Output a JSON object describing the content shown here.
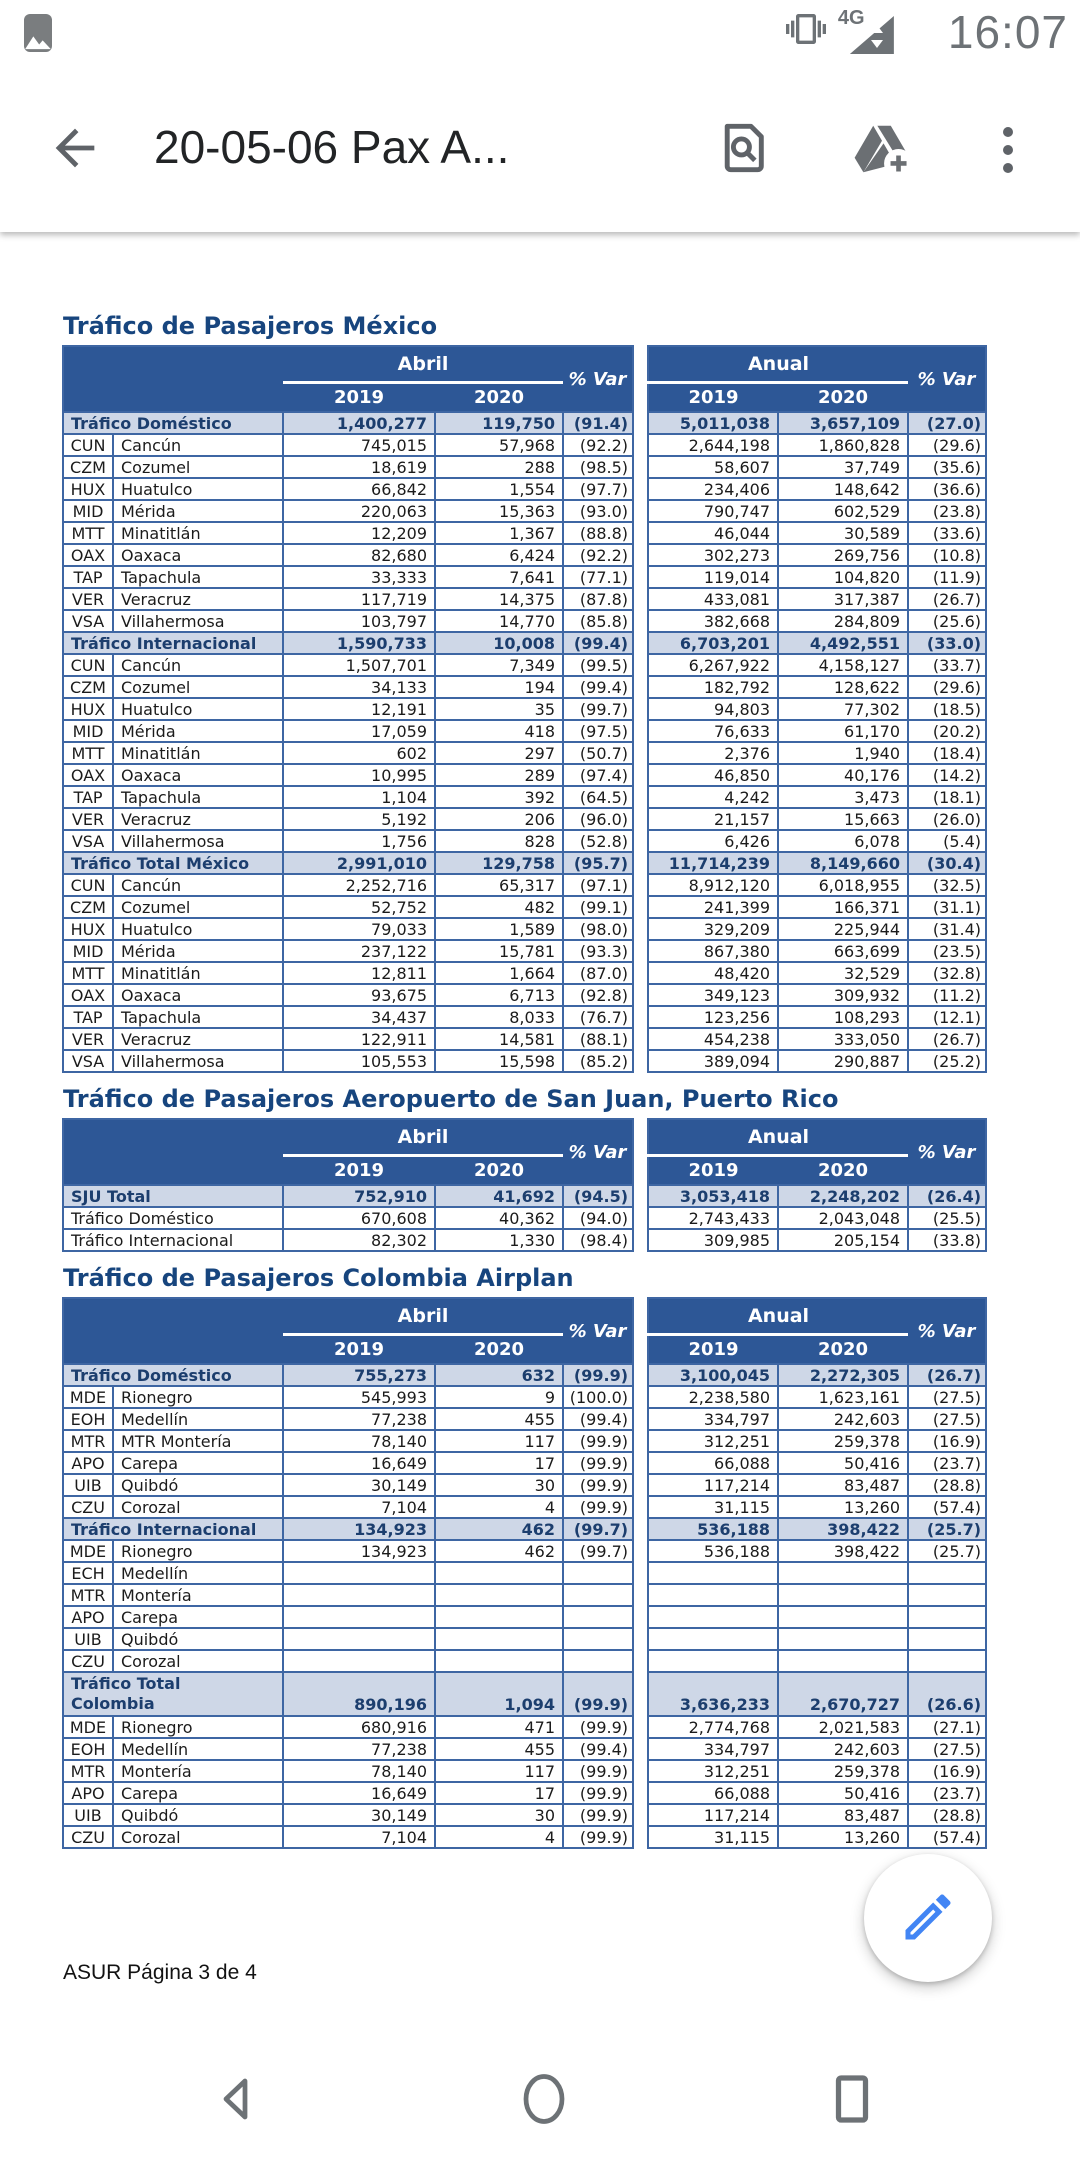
{
  "status_bar": {
    "time": "16:07",
    "network": "4G"
  },
  "app_bar": {
    "title": "20-05-06 Pax A...",
    "icons": [
      "back-arrow",
      "search-in-document",
      "add-to-drive",
      "overflow-menu"
    ]
  },
  "fab": {
    "icon": "edit-pencil",
    "color": "#4285F4"
  },
  "nav_bar": {
    "icons": [
      "back",
      "home",
      "recents"
    ]
  },
  "colors": {
    "table_header_bg": "#2D5796",
    "table_border": "#3E66A3",
    "section_row_bg": "#CED7E7",
    "section_text": "#1C3E6E",
    "title_text": "#17457E",
    "accent_blue": "#4285F4",
    "status_icon_gray": "#6d7276"
  },
  "doc": {
    "headers": {
      "april": "Abril",
      "annual": "Anual",
      "y2019": "2019",
      "y2020": "2020",
      "var": "% Var"
    },
    "footer": "ASUR Página 3 de 4",
    "tables": [
      {
        "title": "Tráfico de Pasajeros México",
        "rows": [
          {
            "type": "section",
            "name": "Tráfico Doméstico",
            "a1": "1,400,277",
            "a2": "119,750",
            "av": "(91.4)",
            "n1": "5,011,038",
            "n2": "3,657,109",
            "nv": "(27.0)"
          },
          {
            "type": "data",
            "code": "CUN",
            "name": "Cancún",
            "a1": "745,015",
            "a2": "57,968",
            "av": "(92.2)",
            "n1": "2,644,198",
            "n2": "1,860,828",
            "nv": "(29.6)"
          },
          {
            "type": "data",
            "code": "CZM",
            "name": "Cozumel",
            "a1": "18,619",
            "a2": "288",
            "av": "(98.5)",
            "n1": "58,607",
            "n2": "37,749",
            "nv": "(35.6)"
          },
          {
            "type": "data",
            "code": "HUX",
            "name": "Huatulco",
            "a1": "66,842",
            "a2": "1,554",
            "av": "(97.7)",
            "n1": "234,406",
            "n2": "148,642",
            "nv": "(36.6)"
          },
          {
            "type": "data",
            "code": "MID",
            "name": "Mérida",
            "a1": "220,063",
            "a2": "15,363",
            "av": "(93.0)",
            "n1": "790,747",
            "n2": "602,529",
            "nv": "(23.8)"
          },
          {
            "type": "data",
            "code": "MTT",
            "name": "Minatitlán",
            "a1": "12,209",
            "a2": "1,367",
            "av": "(88.8)",
            "n1": "46,044",
            "n2": "30,589",
            "nv": "(33.6)"
          },
          {
            "type": "data",
            "code": "OAX",
            "name": "Oaxaca",
            "a1": "82,680",
            "a2": "6,424",
            "av": "(92.2)",
            "n1": "302,273",
            "n2": "269,756",
            "nv": "(10.8)"
          },
          {
            "type": "data",
            "code": "TAP",
            "name": "Tapachula",
            "a1": "33,333",
            "a2": "7,641",
            "av": "(77.1)",
            "n1": "119,014",
            "n2": "104,820",
            "nv": "(11.9)"
          },
          {
            "type": "data",
            "code": "VER",
            "name": "Veracruz",
            "a1": "117,719",
            "a2": "14,375",
            "av": "(87.8)",
            "n1": "433,081",
            "n2": "317,387",
            "nv": "(26.7)"
          },
          {
            "type": "data",
            "code": "VSA",
            "name": "Villahermosa",
            "a1": "103,797",
            "a2": "14,770",
            "av": "(85.8)",
            "n1": "382,668",
            "n2": "284,809",
            "nv": "(25.6)"
          },
          {
            "type": "section",
            "name": "Tráfico Internacional",
            "a1": "1,590,733",
            "a2": "10,008",
            "av": "(99.4)",
            "n1": "6,703,201",
            "n2": "4,492,551",
            "nv": "(33.0)"
          },
          {
            "type": "data",
            "code": "CUN",
            "name": "Cancún",
            "a1": "1,507,701",
            "a2": "7,349",
            "av": "(99.5)",
            "n1": "6,267,922",
            "n2": "4,158,127",
            "nv": "(33.7)"
          },
          {
            "type": "data",
            "code": "CZM",
            "name": "Cozumel",
            "a1": "34,133",
            "a2": "194",
            "av": "(99.4)",
            "n1": "182,792",
            "n2": "128,622",
            "nv": "(29.6)"
          },
          {
            "type": "data",
            "code": "HUX",
            "name": "Huatulco",
            "a1": "12,191",
            "a2": "35",
            "av": "(99.7)",
            "n1": "94,803",
            "n2": "77,302",
            "nv": "(18.5)"
          },
          {
            "type": "data",
            "code": "MID",
            "name": "Mérida",
            "a1": "17,059",
            "a2": "418",
            "av": "(97.5)",
            "n1": "76,633",
            "n2": "61,170",
            "nv": "(20.2)"
          },
          {
            "type": "data",
            "code": "MTT",
            "name": "Minatitlán",
            "a1": "602",
            "a2": "297",
            "av": "(50.7)",
            "n1": "2,376",
            "n2": "1,940",
            "nv": "(18.4)"
          },
          {
            "type": "data",
            "code": "OAX",
            "name": "Oaxaca",
            "a1": "10,995",
            "a2": "289",
            "av": "(97.4)",
            "n1": "46,850",
            "n2": "40,176",
            "nv": "(14.2)"
          },
          {
            "type": "data",
            "code": "TAP",
            "name": "Tapachula",
            "a1": "1,104",
            "a2": "392",
            "av": "(64.5)",
            "n1": "4,242",
            "n2": "3,473",
            "nv": "(18.1)"
          },
          {
            "type": "data",
            "code": "VER",
            "name": "Veracruz",
            "a1": "5,192",
            "a2": "206",
            "av": "(96.0)",
            "n1": "21,157",
            "n2": "15,663",
            "nv": "(26.0)"
          },
          {
            "type": "data",
            "code": "VSA",
            "name": "Villahermosa",
            "a1": "1,756",
            "a2": "828",
            "av": "(52.8)",
            "n1": "6,426",
            "n2": "6,078",
            "nv": "(5.4)"
          },
          {
            "type": "section",
            "name": "Tráfico Total México",
            "a1": "2,991,010",
            "a2": "129,758",
            "av": "(95.7)",
            "n1": "11,714,239",
            "n2": "8,149,660",
            "nv": "(30.4)"
          },
          {
            "type": "data",
            "code": "CUN",
            "name": "Cancún",
            "a1": "2,252,716",
            "a2": "65,317",
            "av": "(97.1)",
            "n1": "8,912,120",
            "n2": "6,018,955",
            "nv": "(32.5)"
          },
          {
            "type": "data",
            "code": "CZM",
            "name": "Cozumel",
            "a1": "52,752",
            "a2": "482",
            "av": "(99.1)",
            "n1": "241,399",
            "n2": "166,371",
            "nv": "(31.1)"
          },
          {
            "type": "data",
            "code": "HUX",
            "name": "Huatulco",
            "a1": "79,033",
            "a2": "1,589",
            "av": "(98.0)",
            "n1": "329,209",
            "n2": "225,944",
            "nv": "(31.4)"
          },
          {
            "type": "data",
            "code": "MID",
            "name": "Mérida",
            "a1": "237,122",
            "a2": "15,781",
            "av": "(93.3)",
            "n1": "867,380",
            "n2": "663,699",
            "nv": "(23.5)"
          },
          {
            "type": "data",
            "code": "MTT",
            "name": "Minatitlán",
            "a1": "12,811",
            "a2": "1,664",
            "av": "(87.0)",
            "n1": "48,420",
            "n2": "32,529",
            "nv": "(32.8)"
          },
          {
            "type": "data",
            "code": "OAX",
            "name": "Oaxaca",
            "a1": "93,675",
            "a2": "6,713",
            "av": "(92.8)",
            "n1": "349,123",
            "n2": "309,932",
            "nv": "(11.2)"
          },
          {
            "type": "data",
            "code": "TAP",
            "name": "Tapachula",
            "a1": "34,437",
            "a2": "8,033",
            "av": "(76.7)",
            "n1": "123,256",
            "n2": "108,293",
            "nv": "(12.1)"
          },
          {
            "type": "data",
            "code": "VER",
            "name": "Veracruz",
            "a1": "122,911",
            "a2": "14,581",
            "av": "(88.1)",
            "n1": "454,238",
            "n2": "333,050",
            "nv": "(26.7)"
          },
          {
            "type": "data",
            "code": "VSA",
            "name": "Villahermosa",
            "a1": "105,553",
            "a2": "15,598",
            "av": "(85.2)",
            "n1": "389,094",
            "n2": "290,887",
            "nv": "(25.2)"
          }
        ]
      },
      {
        "title": "Tráfico de Pasajeros Aeropuerto de San Juan, Puerto Rico",
        "rows": [
          {
            "type": "section",
            "name": "SJU Total",
            "a1": "752,910",
            "a2": "41,692",
            "av": "(94.5)",
            "n1": "3,053,418",
            "n2": "2,248,202",
            "nv": "(26.4)"
          },
          {
            "type": "plain",
            "name": "Tráfico Doméstico",
            "a1": "670,608",
            "a2": "40,362",
            "av": "(94.0)",
            "n1": "2,743,433",
            "n2": "2,043,048",
            "nv": "(25.5)"
          },
          {
            "type": "plain",
            "name": "Tráfico Internacional",
            "a1": "82,302",
            "a2": "1,330",
            "av": "(98.4)",
            "n1": "309,985",
            "n2": "205,154",
            "nv": "(33.8)"
          }
        ]
      },
      {
        "title": "Tráfico de Pasajeros Colombia Airplan",
        "rows": [
          {
            "type": "section",
            "name": "Tráfico Doméstico",
            "a1": "755,273",
            "a2": "632",
            "av": "(99.9)",
            "n1": "3,100,045",
            "n2": "2,272,305",
            "nv": "(26.7)"
          },
          {
            "type": "data",
            "code": "MDE",
            "name": "Rionegro",
            "a1": "545,993",
            "a2": "9",
            "av": "(100.0)",
            "n1": "2,238,580",
            "n2": "1,623,161",
            "nv": "(27.5)"
          },
          {
            "type": "data",
            "code": "EOH",
            "name": "Medellín",
            "a1": "77,238",
            "a2": "455",
            "av": "(99.4)",
            "n1": "334,797",
            "n2": "242,603",
            "nv": "(27.5)"
          },
          {
            "type": "data",
            "code": "MTR",
            "name": "MTR Montería",
            "a1": "78,140",
            "a2": "117",
            "av": "(99.9)",
            "n1": "312,251",
            "n2": "259,378",
            "nv": "(16.9)"
          },
          {
            "type": "data",
            "code": "APO",
            "name": "Carepa",
            "a1": "16,649",
            "a2": "17",
            "av": "(99.9)",
            "n1": "66,088",
            "n2": "50,416",
            "nv": "(23.7)"
          },
          {
            "type": "data",
            "code": "UIB",
            "name": "Quibdó",
            "a1": "30,149",
            "a2": "30",
            "av": "(99.9)",
            "n1": "117,214",
            "n2": "83,487",
            "nv": "(28.8)"
          },
          {
            "type": "data",
            "code": "CZU",
            "name": "Corozal",
            "a1": "7,104",
            "a2": "4",
            "av": "(99.9)",
            "n1": "31,115",
            "n2": "13,260",
            "nv": "(57.4)"
          },
          {
            "type": "section",
            "name": "Tráfico Internacional",
            "a1": "134,923",
            "a2": "462",
            "av": "(99.7)",
            "n1": "536,188",
            "n2": "398,422",
            "nv": "(25.7)"
          },
          {
            "type": "data",
            "code": "MDE",
            "name": "Rionegro",
            "a1": "134,923",
            "a2": "462",
            "av": "(99.7)",
            "n1": "536,188",
            "n2": "398,422",
            "nv": "(25.7)"
          },
          {
            "type": "data",
            "code": "ECH",
            "name": "Medellín",
            "a1": "",
            "a2": "",
            "av": "",
            "n1": "",
            "n2": "",
            "nv": ""
          },
          {
            "type": "data",
            "code": "MTR",
            "name": "Montería",
            "a1": "",
            "a2": "",
            "av": "",
            "n1": "",
            "n2": "",
            "nv": ""
          },
          {
            "type": "data",
            "code": "APO",
            "name": "Carepa",
            "a1": "",
            "a2": "",
            "av": "",
            "n1": "",
            "n2": "",
            "nv": ""
          },
          {
            "type": "data",
            "code": "UIB",
            "name": "Quibdó",
            "a1": "",
            "a2": "",
            "av": "",
            "n1": "",
            "n2": "",
            "nv": ""
          },
          {
            "type": "data",
            "code": "CZU",
            "name": "Corozal",
            "a1": "",
            "a2": "",
            "av": "",
            "n1": "",
            "n2": "",
            "nv": ""
          },
          {
            "type": "tall",
            "name": "Tráfico Total Colombia",
            "a1": "890,196",
            "a2": "1,094",
            "av": "(99.9)",
            "n1": "3,636,233",
            "n2": "2,670,727",
            "nv": "(26.6)"
          },
          {
            "type": "data",
            "code": "MDE",
            "name": "Rionegro",
            "a1": "680,916",
            "a2": "471",
            "av": "(99.9)",
            "n1": "2,774,768",
            "n2": "2,021,583",
            "nv": "(27.1)"
          },
          {
            "type": "data",
            "code": "EOH",
            "name": "Medellín",
            "a1": "77,238",
            "a2": "455",
            "av": "(99.4)",
            "n1": "334,797",
            "n2": "242,603",
            "nv": "(27.5)"
          },
          {
            "type": "data",
            "code": "MTR",
            "name": "Montería",
            "a1": "78,140",
            "a2": "117",
            "av": "(99.9)",
            "n1": "312,251",
            "n2": "259,378",
            "nv": "(16.9)"
          },
          {
            "type": "data",
            "code": "APO",
            "name": "Carepa",
            "a1": "16,649",
            "a2": "17",
            "av": "(99.9)",
            "n1": "66,088",
            "n2": "50,416",
            "nv": "(23.7)"
          },
          {
            "type": "data",
            "code": "UIB",
            "name": "Quibdó",
            "a1": "30,149",
            "a2": "30",
            "av": "(99.9)",
            "n1": "117,214",
            "n2": "83,487",
            "nv": "(28.8)"
          },
          {
            "type": "data",
            "code": "CZU",
            "name": "Corozal",
            "a1": "7,104",
            "a2": "4",
            "av": "(99.9)",
            "n1": "31,115",
            "n2": "13,260",
            "nv": "(57.4)"
          }
        ]
      }
    ]
  }
}
